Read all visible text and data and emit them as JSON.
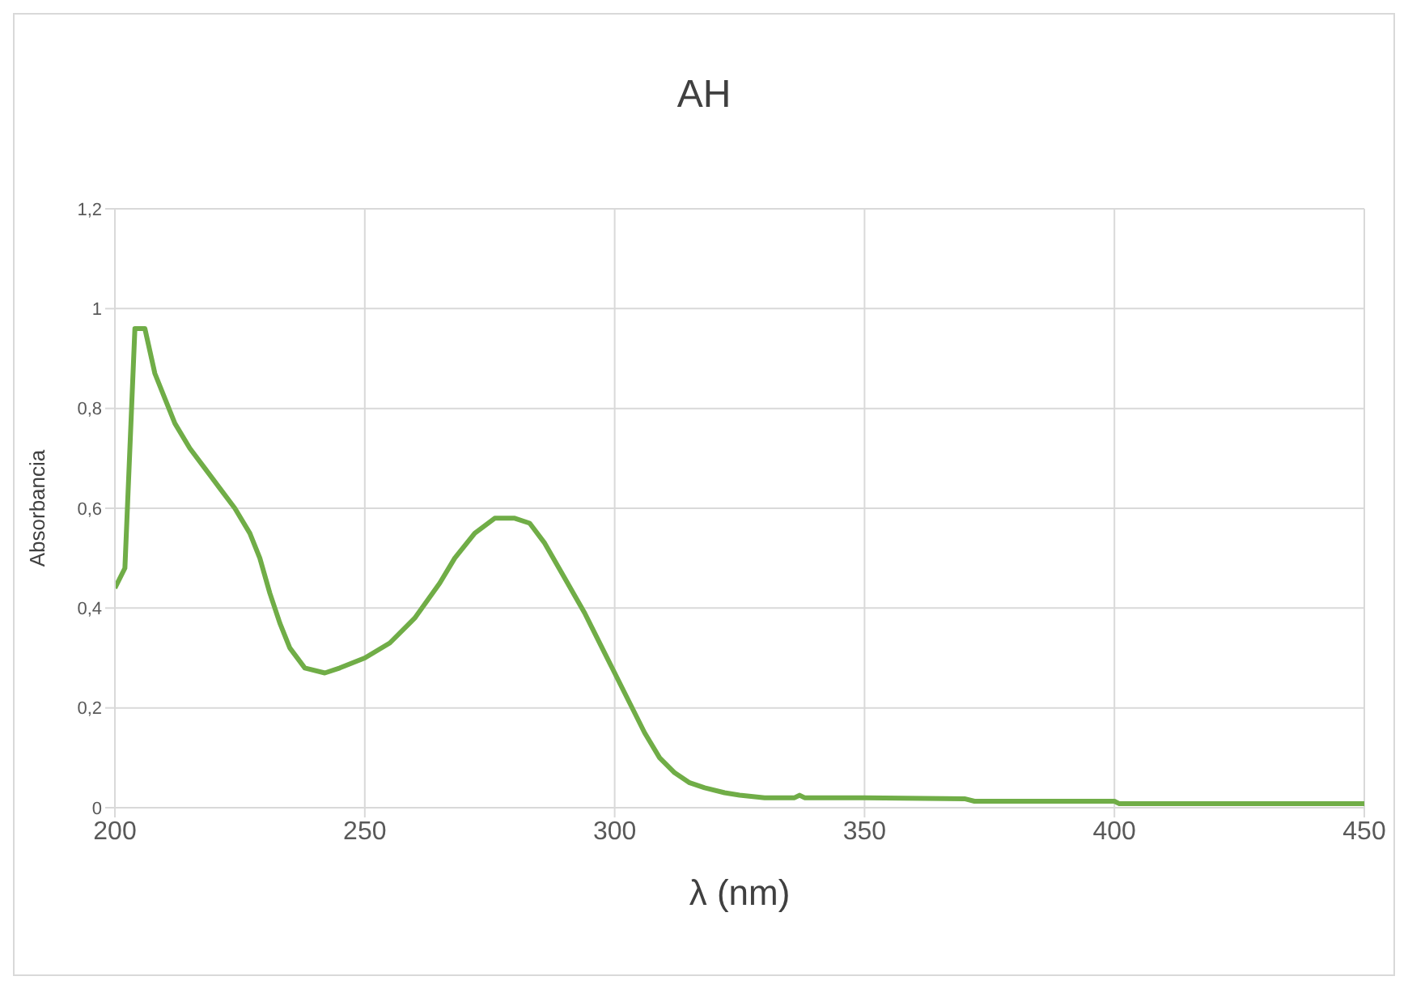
{
  "chart_data": {
    "type": "line",
    "title": "AH",
    "xlabel": "λ (nm)",
    "ylabel": "Absorbancia",
    "x": [
      200,
      202,
      204,
      206,
      208,
      210,
      212,
      215,
      218,
      221,
      224,
      227,
      229,
      231,
      233,
      235,
      238,
      242,
      245,
      250,
      255,
      260,
      265,
      268,
      272,
      276,
      280,
      283,
      286,
      290,
      294,
      298,
      300,
      303,
      306,
      309,
      312,
      315,
      318,
      322,
      325,
      330,
      336,
      337,
      338,
      340,
      350,
      370,
      372,
      400,
      401,
      450
    ],
    "series": [
      {
        "color": "#70ad47",
        "values": [
          0.44,
          0.48,
          0.96,
          0.96,
          0.87,
          0.82,
          0.77,
          0.72,
          0.68,
          0.64,
          0.6,
          0.55,
          0.5,
          0.43,
          0.37,
          0.32,
          0.28,
          0.27,
          0.28,
          0.3,
          0.33,
          0.38,
          0.45,
          0.5,
          0.55,
          0.58,
          0.58,
          0.57,
          0.53,
          0.46,
          0.39,
          0.31,
          0.27,
          0.21,
          0.15,
          0.1,
          0.07,
          0.05,
          0.04,
          0.03,
          0.025,
          0.02,
          0.02,
          0.025,
          0.02,
          0.02,
          0.02,
          0.018,
          0.013,
          0.013,
          0.008,
          0.008
        ]
      }
    ],
    "xlim": [
      200,
      450
    ],
    "xticks": [
      200,
      250,
      300,
      350,
      400,
      450
    ],
    "ylim": [
      0,
      1.2
    ],
    "yticks": [
      {
        "value": 0,
        "label": "0"
      },
      {
        "value": 0.2,
        "label": "0,2"
      },
      {
        "value": 0.4,
        "label": "0,4"
      },
      {
        "value": 0.6,
        "label": "0,6"
      },
      {
        "value": 0.8,
        "label": "0,8"
      },
      {
        "value": 1,
        "label": "1"
      },
      {
        "value": 1.2,
        "label": "1,2"
      }
    ],
    "grid": true,
    "legend": false,
    "marker": "none",
    "line_style": "solid"
  }
}
